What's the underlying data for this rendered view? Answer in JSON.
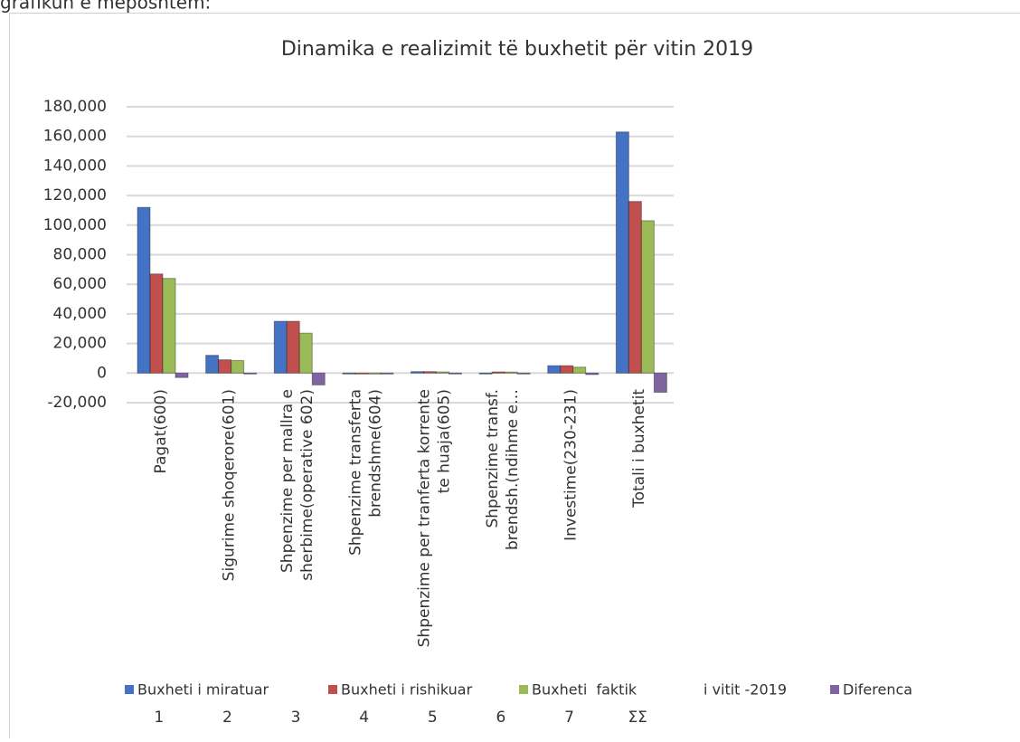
{
  "caption_fragment": "grafikun e mëposhtëm:",
  "chart_data": {
    "type": "bar",
    "title": "Dinamika e realizimit të buxhetit për vitin 2019",
    "categories": [
      [
        "Pagat(600)"
      ],
      [
        "Sigurime shoqerore(601)"
      ],
      [
        "Shpenzime per mallra e",
        "sherbime(operative 602)"
      ],
      [
        "Shpenzime transferta",
        "brendshme(604)"
      ],
      [
        "Shpenzime per tranferta korrente",
        "te huaja(605)"
      ],
      [
        "Shpenzime transf.",
        "brendsh.(ndihme e…"
      ],
      [
        "Investime(230-231)"
      ],
      [
        "Totali i buxhetit"
      ]
    ],
    "series": [
      {
        "name": "Buxheti i miratuar",
        "color": "#4472c4",
        "values": [
          112000,
          12000,
          35000,
          0,
          1000,
          0,
          5000,
          163000
        ]
      },
      {
        "name": "Buxheti i rishikuar",
        "color": "#c0504d",
        "values": [
          67000,
          9000,
          35000,
          0,
          1000,
          800,
          5000,
          116000
        ]
      },
      {
        "name": "Buxheti  faktik",
        "color": "#9bbb59",
        "values": [
          64000,
          8500,
          27000,
          0,
          800,
          700,
          4000,
          103000
        ]
      },
      {
        "name": "Diferenca",
        "color": "#8064a2",
        "values": [
          -3000,
          -500,
          -8000,
          -300,
          -200,
          -100,
          -1000,
          -13000
        ]
      }
    ],
    "legend_extra": "i vitit -2019",
    "legend_numbers": [
      "1",
      "2",
      "3",
      "4",
      "5",
      "6",
      "7",
      "ΣΣ"
    ],
    "ylim": [
      -20000,
      180000
    ],
    "yticks": [
      {
        "value": -20000,
        "label": "-20,000"
      },
      0,
      {
        "value": 20000,
        "label": "20,000"
      },
      {
        "value": 40000,
        "label": "40,000"
      },
      {
        "value": 60000,
        "label": "60,000"
      },
      {
        "value": 80000,
        "label": "80,000"
      },
      {
        "value": 100000,
        "label": "100,000"
      },
      {
        "value": 120000,
        "label": "120,000"
      },
      {
        "value": 140000,
        "label": "140,000"
      },
      {
        "value": 160000,
        "label": "160,000"
      },
      {
        "value": 180000,
        "label": "180,000"
      }
    ],
    "grid": true
  }
}
